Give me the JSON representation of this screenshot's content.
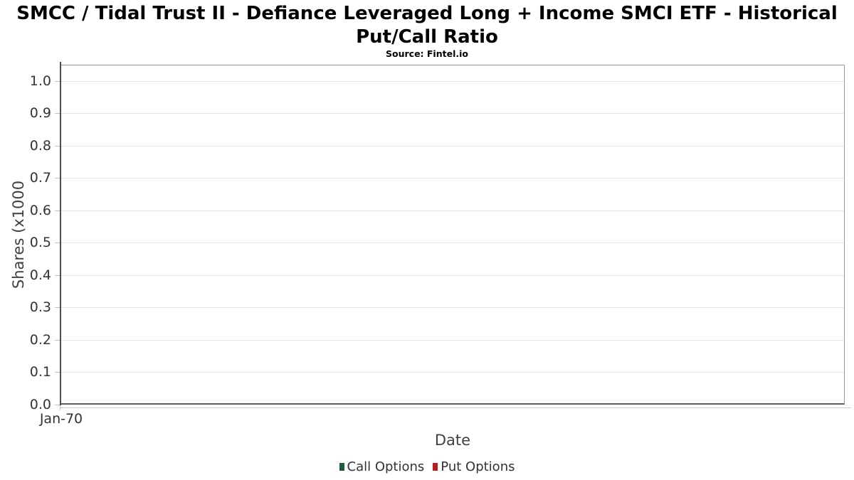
{
  "header": {
    "title_lines": [
      "SMCC / Tidal Trust II - Defiance Leveraged Long + Income SMCI ETF - Historical",
      "Put/Call Ratio"
    ]
  },
  "chart_data": {
    "type": "line",
    "title": "SMCC / Tidal Trust II - Defiance Leveraged Long + Income SMCI ETF - Historical Put/Call Ratio",
    "subtitle": "Source: Fintel.io",
    "xlabel": "Date",
    "ylabel": "Shares (x1000",
    "x_ticks": [
      "Jan-70"
    ],
    "y_ticks": [
      "1.0",
      "0.9",
      "0.8",
      "0.7",
      "0.6",
      "0.5",
      "0.4",
      "0.3",
      "0.2",
      "0.1",
      "0.0"
    ],
    "ylim": [
      0.0,
      1.05
    ],
    "grid": "horizontal",
    "legend_position": "bottom-center",
    "legend": [
      {
        "label": "Call Options",
        "color": "#1f5c38"
      },
      {
        "label": "Put Options",
        "color": "#b91b1b"
      }
    ],
    "x": [],
    "series": [
      {
        "name": "Call Options",
        "values": []
      },
      {
        "name": "Put Options",
        "values": []
      }
    ]
  }
}
